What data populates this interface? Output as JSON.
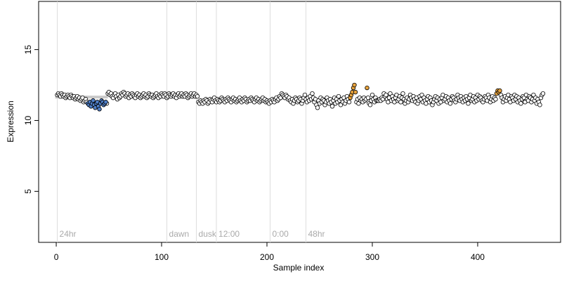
{
  "chart_data": {
    "type": "scatter",
    "x_label": "Sample index",
    "y_label": "Expression",
    "xlim": [
      -16.7,
      478.7
    ],
    "ylim": [
      1.4,
      18.4
    ],
    "xticks": [
      0,
      100,
      200,
      300,
      400
    ],
    "yticks": [
      5,
      10,
      15
    ],
    "annotations": [
      {
        "x": 1,
        "label": "24hr"
      },
      {
        "x": 105,
        "label": "dawn"
      },
      {
        "x": 133,
        "label": "dusk"
      },
      {
        "x": 152,
        "label": "12:00"
      },
      {
        "x": 203,
        "label": "0:00"
      },
      {
        "x": 237,
        "label": "48hr"
      }
    ],
    "bands": [
      {
        "x": [
          -1,
          49
        ],
        "y": [
          11.55,
          11.75
        ],
        "color": "#c8c8c8"
      }
    ],
    "series": [
      {
        "color": "#ffffff",
        "x": [
          1,
          2,
          3,
          4,
          5,
          6,
          7,
          8,
          9,
          10,
          11,
          12,
          13,
          14,
          15,
          16,
          17,
          18,
          19,
          20,
          21,
          22,
          23,
          24,
          25,
          26,
          27,
          28,
          29,
          48,
          49,
          50,
          51,
          52,
          53,
          54,
          55,
          56,
          57,
          58,
          59,
          60,
          61,
          62,
          63,
          64,
          65,
          66,
          67,
          68,
          69,
          70,
          71,
          72,
          73,
          74,
          75,
          76,
          77,
          78,
          79,
          80,
          81,
          82,
          83,
          84,
          85,
          86,
          87,
          88,
          89,
          90,
          91,
          92,
          93,
          94,
          95,
          96,
          97,
          98,
          99,
          100,
          101,
          102,
          103,
          104,
          105,
          106,
          107,
          108,
          109,
          110,
          111,
          112,
          113,
          114,
          115,
          116,
          117,
          118,
          119,
          120,
          121,
          122,
          123,
          124,
          125,
          126,
          127,
          128,
          129,
          130,
          131,
          132,
          133,
          134,
          135,
          136,
          137,
          138,
          139,
          140,
          141,
          142,
          143,
          144,
          145,
          146,
          147,
          148,
          149,
          150,
          151,
          152,
          153,
          154,
          155,
          156,
          157,
          158,
          159,
          160,
          161,
          162,
          163,
          164,
          165,
          166,
          167,
          168,
          169,
          170,
          171,
          172,
          173,
          174,
          175,
          176,
          177,
          178,
          179,
          180,
          181,
          182,
          183,
          184,
          185,
          186,
          187,
          188,
          189,
          190,
          191,
          192,
          193,
          194,
          195,
          196,
          197,
          198,
          199,
          200,
          201,
          202,
          203,
          204,
          205,
          206,
          207,
          208,
          209,
          210,
          211,
          212,
          213,
          214,
          215,
          216,
          217,
          218,
          219,
          220,
          221,
          222,
          223,
          224,
          225,
          226,
          227,
          228,
          229,
          230,
          231,
          232,
          233,
          234,
          235,
          236,
          237,
          238,
          239,
          240,
          241,
          242,
          243,
          244,
          245,
          246,
          247,
          248,
          249,
          250,
          251,
          252,
          253,
          254,
          255,
          256,
          257,
          258,
          259,
          260,
          261,
          262,
          263,
          264,
          265,
          266,
          267,
          268,
          269,
          270,
          271,
          272,
          273,
          274,
          275,
          276,
          277,
          278,
          285,
          286,
          287,
          288,
          289,
          290,
          291,
          292,
          293,
          294,
          296,
          297,
          298,
          299,
          300,
          301,
          302,
          303,
          304,
          305,
          306,
          307,
          308,
          309,
          310,
          311,
          312,
          313,
          314,
          315,
          316,
          317,
          318,
          319,
          320,
          321,
          322,
          323,
          324,
          325,
          326,
          327,
          328,
          329,
          330,
          331,
          332,
          333,
          334,
          335,
          336,
          337,
          338,
          339,
          340,
          341,
          342,
          343,
          344,
          345,
          346,
          347,
          348,
          349,
          350,
          351,
          352,
          353,
          354,
          355,
          356,
          357,
          358,
          359,
          360,
          361,
          362,
          363,
          364,
          365,
          366,
          367,
          368,
          369,
          370,
          371,
          372,
          373,
          374,
          375,
          376,
          377,
          378,
          379,
          380,
          381,
          382,
          383,
          384,
          385,
          386,
          387,
          388,
          389,
          390,
          391,
          392,
          393,
          394,
          395,
          396,
          397,
          398,
          399,
          400,
          401,
          402,
          403,
          404,
          405,
          406,
          407,
          408,
          409,
          410,
          411,
          412,
          413,
          414,
          415,
          416,
          417,
          422,
          423,
          424,
          425,
          426,
          427,
          428,
          429,
          430,
          431,
          432,
          433,
          434,
          435,
          436,
          437,
          438,
          439,
          440,
          441,
          442,
          443,
          444,
          445,
          446,
          447,
          448,
          449,
          450,
          451,
          452,
          453,
          454,
          455,
          456,
          457,
          458,
          459,
          460,
          461,
          462
        ],
        "values": [
          11.8,
          11.9,
          11.8,
          11.7,
          11.9,
          11.8,
          11.7,
          11.8,
          11.6,
          11.7,
          11.8,
          11.7,
          11.6,
          11.8,
          11.7,
          11.6,
          11.7,
          11.5,
          11.6,
          11.7,
          11.5,
          11.6,
          11.4,
          11.5,
          11.6,
          11.3,
          11.4,
          11.5,
          11.3,
          11.2,
          11.9,
          12.0,
          11.8,
          11.9,
          11.7,
          11.6,
          11.8,
          11.9,
          11.7,
          11.5,
          11.8,
          11.6,
          11.7,
          11.9,
          11.8,
          12.0,
          11.9,
          11.7,
          11.8,
          11.9,
          11.6,
          11.8,
          11.7,
          11.9,
          11.8,
          11.7,
          11.6,
          11.8,
          11.9,
          11.7,
          11.8,
          11.6,
          11.7,
          11.8,
          11.9,
          11.7,
          11.8,
          11.6,
          11.7,
          11.9,
          11.8,
          11.7,
          11.8,
          11.6,
          11.7,
          11.8,
          11.9,
          11.7,
          11.6,
          11.8,
          11.7,
          11.9,
          11.8,
          11.7,
          11.9,
          11.8,
          11.6,
          11.7,
          11.9,
          11.8,
          11.7,
          11.8,
          11.9,
          11.7,
          11.8,
          11.6,
          11.8,
          11.9,
          11.7,
          11.8,
          11.9,
          11.7,
          11.8,
          11.7,
          11.9,
          11.8,
          11.6,
          11.7,
          11.8,
          11.9,
          11.7,
          11.8,
          11.9,
          11.7,
          11.8,
          11.7,
          11.3,
          11.2,
          11.4,
          11.3,
          11.2,
          11.4,
          11.3,
          11.5,
          11.4,
          11.2,
          11.3,
          11.5,
          11.4,
          11.3,
          11.5,
          11.6,
          11.4,
          11.3,
          11.5,
          11.4,
          11.3,
          11.4,
          11.6,
          11.5,
          11.4,
          11.3,
          11.5,
          11.4,
          11.6,
          11.5,
          11.4,
          11.3,
          11.5,
          11.6,
          11.4,
          11.5,
          11.3,
          11.4,
          11.5,
          11.6,
          11.4,
          11.3,
          11.5,
          11.4,
          11.6,
          11.5,
          11.3,
          11.4,
          11.5,
          11.4,
          11.6,
          11.5,
          11.4,
          11.3,
          11.5,
          11.6,
          11.4,
          11.5,
          11.3,
          11.4,
          11.5,
          11.6,
          11.4,
          11.5,
          11.3,
          11.4,
          11.3,
          11.2,
          11.4,
          11.3,
          11.5,
          11.4,
          11.3,
          11.5,
          11.6,
          11.4,
          11.5,
          11.7,
          11.6,
          11.9,
          11.8,
          11.7,
          11.6,
          11.8,
          11.7,
          11.5,
          11.6,
          11.4,
          11.3,
          11.5,
          11.2,
          11.4,
          11.6,
          11.5,
          11.3,
          11.4,
          11.6,
          11.5,
          11.2,
          11.4,
          11.6,
          11.8,
          11.5,
          11.3,
          11.6,
          11.4,
          11.7,
          11.5,
          11.9,
          11.6,
          11.3,
          11.5,
          11.1,
          10.9,
          11.4,
          11.2,
          11.6,
          11.3,
          11.5,
          11.4,
          11.1,
          11.3,
          11.6,
          11.4,
          11.2,
          11.5,
          11.3,
          11.0,
          11.4,
          11.6,
          11.2,
          11.5,
          11.3,
          11.7,
          11.4,
          11.1,
          11.5,
          11.3,
          11.6,
          11.2,
          11.4,
          11.7,
          11.5,
          11.3,
          11.3,
          11.5,
          11.2,
          11.6,
          11.4,
          11.5,
          11.3,
          11.6,
          11.4,
          11.5,
          11.6,
          11.2,
          11.1,
          11.4,
          11.8,
          11.5,
          11.3,
          11.6,
          11.4,
          11.4,
          11.4,
          11.5,
          11.4,
          11.6,
          11.5,
          11.9,
          11.7,
          11.8,
          11.5,
          11.3,
          11.6,
          11.9,
          11.4,
          11.7,
          11.5,
          11.3,
          11.6,
          11.8,
          11.4,
          11.5,
          11.7,
          11.3,
          11.6,
          11.9,
          11.5,
          11.2,
          11.4,
          11.6,
          11.3,
          11.5,
          11.8,
          11.6,
          11.4,
          11.7,
          11.5,
          11.3,
          11.6,
          11.2,
          11.4,
          11.7,
          11.5,
          11.8,
          11.3,
          11.6,
          11.4,
          11.2,
          11.5,
          11.7,
          11.3,
          11.6,
          11.4,
          11.1,
          11.3,
          11.5,
          11.7,
          11.4,
          11.6,
          11.2,
          11.5,
          11.3,
          11.6,
          11.8,
          11.4,
          11.5,
          11.7,
          11.3,
          11.6,
          11.4,
          11.2,
          11.5,
          11.7,
          11.6,
          11.4,
          11.3,
          11.5,
          11.8,
          11.6,
          11.4,
          11.7,
          11.5,
          11.3,
          11.6,
          11.4,
          11.7,
          11.5,
          11.2,
          11.6,
          11.8,
          11.4,
          11.5,
          11.7,
          11.3,
          11.6,
          11.4,
          11.8,
          11.5,
          11.7,
          11.6,
          11.4,
          11.3,
          11.5,
          11.7,
          11.6,
          11.4,
          11.8,
          11.6,
          11.3,
          11.5,
          11.7,
          11.4,
          11.6,
          11.5,
          11.8,
          11.6,
          11.3,
          11.5,
          11.7,
          11.4,
          11.6,
          11.8,
          11.5,
          11.3,
          11.7,
          11.6,
          11.4,
          11.8,
          11.5,
          11.7,
          11.3,
          11.6,
          11.4,
          11.2,
          11.5,
          11.7,
          11.6,
          11.3,
          11.8,
          11.5,
          11.4,
          11.7,
          11.6,
          11.3,
          11.5,
          11.8,
          11.4,
          11.6,
          11.2,
          11.5,
          11.3,
          11.1,
          11.6,
          11.8,
          11.9
        ]
      },
      {
        "color": "#4f7fc8",
        "x": [
          30,
          31,
          32,
          33,
          34,
          35,
          36,
          37,
          38,
          39,
          40,
          41,
          42,
          43,
          44,
          45,
          46,
          47
        ],
        "values": [
          11.2,
          11.1,
          11.3,
          11.0,
          11.2,
          11.4,
          11.1,
          10.9,
          11.2,
          11.3,
          11.0,
          10.8,
          11.2,
          11.4,
          11.3,
          11.1,
          11.2,
          11.3
        ]
      },
      {
        "color": "#e8a33d",
        "x": [
          279,
          280,
          281,
          282,
          283,
          284,
          295,
          418,
          419,
          420,
          421
        ],
        "values": [
          11.6,
          11.8,
          12.0,
          12.3,
          12.5,
          12.0,
          12.3,
          11.9,
          12.1,
          12.0,
          12.1
        ]
      }
    ]
  }
}
